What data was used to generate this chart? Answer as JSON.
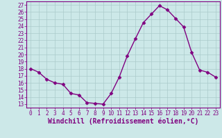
{
  "x": [
    0,
    1,
    2,
    3,
    4,
    5,
    6,
    7,
    8,
    9,
    10,
    11,
    12,
    13,
    14,
    15,
    16,
    17,
    18,
    19,
    20,
    21,
    22,
    23
  ],
  "y": [
    18.0,
    17.5,
    16.5,
    16.0,
    15.8,
    14.5,
    14.3,
    13.2,
    13.1,
    13.0,
    14.5,
    16.8,
    19.8,
    22.2,
    24.5,
    25.7,
    26.9,
    26.3,
    25.1,
    23.9,
    20.3,
    17.8,
    17.5,
    16.8
  ],
  "line_color": "#800080",
  "marker": "D",
  "marker_size": 2.5,
  "bg_color": "#cce8e8",
  "grid_color": "#aacaca",
  "xlabel": "Windchill (Refroidissement éolien,°C)",
  "xlim": [
    -0.5,
    23.5
  ],
  "ylim": [
    12.5,
    27.5
  ],
  "yticks": [
    13,
    14,
    15,
    16,
    17,
    18,
    19,
    20,
    21,
    22,
    23,
    24,
    25,
    26,
    27
  ],
  "xticks": [
    0,
    1,
    2,
    3,
    4,
    5,
    6,
    7,
    8,
    9,
    10,
    11,
    12,
    13,
    14,
    15,
    16,
    17,
    18,
    19,
    20,
    21,
    22,
    23
  ],
  "tick_label_fontsize": 5.5,
  "xlabel_fontsize": 7.0,
  "line_width": 1.0
}
